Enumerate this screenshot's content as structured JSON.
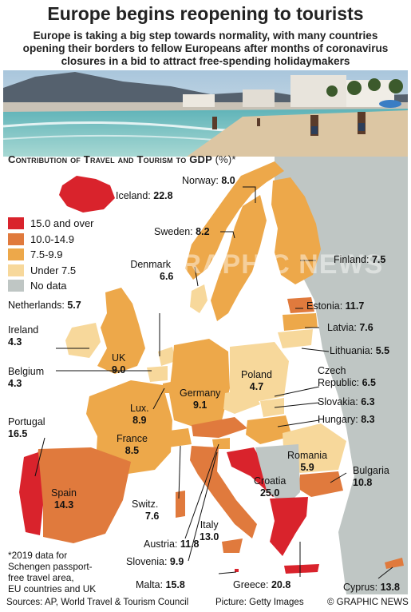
{
  "header": {
    "title": "Europe begins reopening to tourists",
    "subtitle_lines": [
      "Europe is taking a big step towards normality, with many countries",
      "opening their borders to fellow Europeans after months of coronavirus",
      "closures in a bid to attract free-spending holidaymakers"
    ]
  },
  "chart": {
    "title": "Contribution of Travel and Tourism to GDP",
    "unit": "(%)*"
  },
  "legend": [
    {
      "label": "15.0 and over",
      "color": "#d9232c"
    },
    {
      "label": "10.0-14.9",
      "color": "#e07a3d"
    },
    {
      "label": "7.5-9.9",
      "color": "#eda84a"
    },
    {
      "label": "Under 7.5",
      "color": "#f7d89b"
    },
    {
      "label": "No data",
      "color": "#bfc6c4"
    }
  ],
  "countries": {
    "iceland": {
      "name": "Iceland:",
      "value": "22.8"
    },
    "norway": {
      "name": "Norway:",
      "value": "8.0"
    },
    "sweden": {
      "name": "Sweden:",
      "value": "8.2"
    },
    "finland": {
      "name": "Finland:",
      "value": "7.5"
    },
    "denmark": {
      "name": "Denmark",
      "value": "6.6"
    },
    "netherlands": {
      "name": "Netherlands:",
      "value": "5.7"
    },
    "ireland": {
      "name": "Ireland",
      "value": "4.3"
    },
    "uk": {
      "name": "UK",
      "value": "9.0"
    },
    "belgium": {
      "name": "Belgium",
      "value": "4.3"
    },
    "estonia": {
      "name": "Estonia:",
      "value": "11.7"
    },
    "latvia": {
      "name": "Latvia:",
      "value": "7.6"
    },
    "lithuania": {
      "name": "Lithuania:",
      "value": "5.5"
    },
    "poland": {
      "name": "Poland",
      "value": "4.7"
    },
    "germany": {
      "name": "Germany",
      "value": "9.1"
    },
    "czech": {
      "name_line1": "Czech",
      "name_line2": "Republic:",
      "value": "6.5"
    },
    "slovakia": {
      "name": "Slovakia:",
      "value": "6.3"
    },
    "hungary": {
      "name": "Hungary:",
      "value": "8.3"
    },
    "lux": {
      "name": "Lux.",
      "value": "8.9"
    },
    "france": {
      "name": "France",
      "value": "8.5"
    },
    "portugal": {
      "name": "Portugal",
      "value": "16.5"
    },
    "romania": {
      "name": "Romania",
      "value": "5.9"
    },
    "bulgaria": {
      "name": "Bulgaria",
      "value": "10.8"
    },
    "spain": {
      "name": "Spain",
      "value": "14.3"
    },
    "croatia": {
      "name": "Croatia",
      "value": "25.0"
    },
    "switz": {
      "name": "Switz.",
      "value": "7.6"
    },
    "italy": {
      "name": "Italy",
      "value": "13.0"
    },
    "austria": {
      "name": "Austria:",
      "value": "11.8"
    },
    "slovenia": {
      "name": "Slovenia:",
      "value": "9.9"
    },
    "malta": {
      "name": "Malta:",
      "value": "15.8"
    },
    "greece": {
      "name": "Greece:",
      "value": "20.8"
    },
    "cyprus": {
      "name": "Cyprus:",
      "value": "13.8"
    }
  },
  "note": {
    "lines": [
      "*2019 data for",
      "Schengen passport-",
      "free travel area,",
      "EU countries and UK"
    ]
  },
  "footer": {
    "sources": "Sources: AP, World Travel & Tourism Council",
    "picture": "Picture: Getty Images",
    "copyright": "© GRAPHIC NEWS"
  },
  "watermark": "GRAPHIC NEWS"
}
